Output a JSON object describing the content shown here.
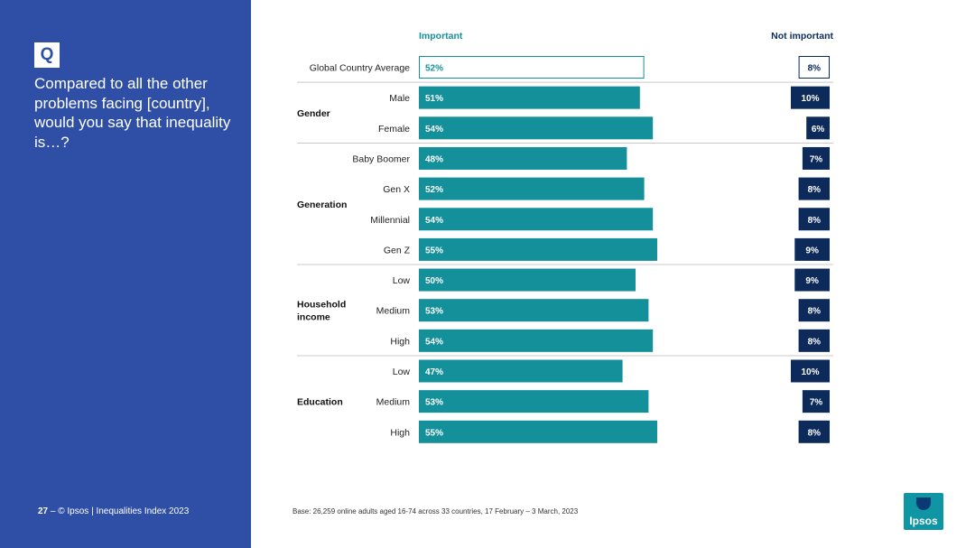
{
  "sidebar": {
    "q_label": "Q",
    "question": "Compared to all the other problems facing [country], would you say that inequality is…?",
    "page_number": "27",
    "footer_text": "–  © Ipsos | Inequalities Index 2023"
  },
  "base_note": "Base: 26,259 online adults aged 16-74 across 33 countries, 17 February – 3 March, 2023",
  "logo_text": "Ipsos",
  "colors": {
    "important": "#14909b",
    "not_important": "#0c2a5a",
    "sidebar": "#2e4fa5",
    "header_important": "#14909b",
    "header_not_important": "#0c2a5a"
  },
  "chart_data": {
    "type": "bar",
    "orientation": "horizontal",
    "title": "",
    "columns": [
      "Important",
      "Not important"
    ],
    "unit": "%",
    "rows": [
      {
        "group": "",
        "label": "Global Country Average",
        "important": 52,
        "not_important": 8,
        "highlight": true
      },
      {
        "group": "Gender",
        "label": "Male",
        "important": 51,
        "not_important": 10
      },
      {
        "group": "Gender",
        "label": "Female",
        "important": 54,
        "not_important": 6
      },
      {
        "group": "Generation",
        "label": "Baby Boomer",
        "important": 48,
        "not_important": 7
      },
      {
        "group": "Generation",
        "label": "Gen X",
        "important": 52,
        "not_important": 8
      },
      {
        "group": "Generation",
        "label": "Millennial",
        "important": 54,
        "not_important": 8
      },
      {
        "group": "Generation",
        "label": "Gen Z",
        "important": 55,
        "not_important": 9
      },
      {
        "group": "Household income",
        "label": "Low",
        "important": 50,
        "not_important": 9
      },
      {
        "group": "Household income",
        "label": "Medium",
        "important": 53,
        "not_important": 8
      },
      {
        "group": "Household income",
        "label": "High",
        "important": 54,
        "not_important": 8
      },
      {
        "group": "Education",
        "label": "Low",
        "important": 47,
        "not_important": 10
      },
      {
        "group": "Education",
        "label": "Medium",
        "important": 53,
        "not_important": 7
      },
      {
        "group": "Education",
        "label": "High",
        "important": 55,
        "not_important": 8
      }
    ],
    "groups": [
      {
        "name": "Gender",
        "lines": [
          "Gender"
        ]
      },
      {
        "name": "Generation",
        "lines": [
          "Generation"
        ]
      },
      {
        "name": "Household income",
        "lines": [
          "Household",
          "income"
        ]
      },
      {
        "name": "Education",
        "lines": [
          "Education"
        ]
      }
    ]
  }
}
